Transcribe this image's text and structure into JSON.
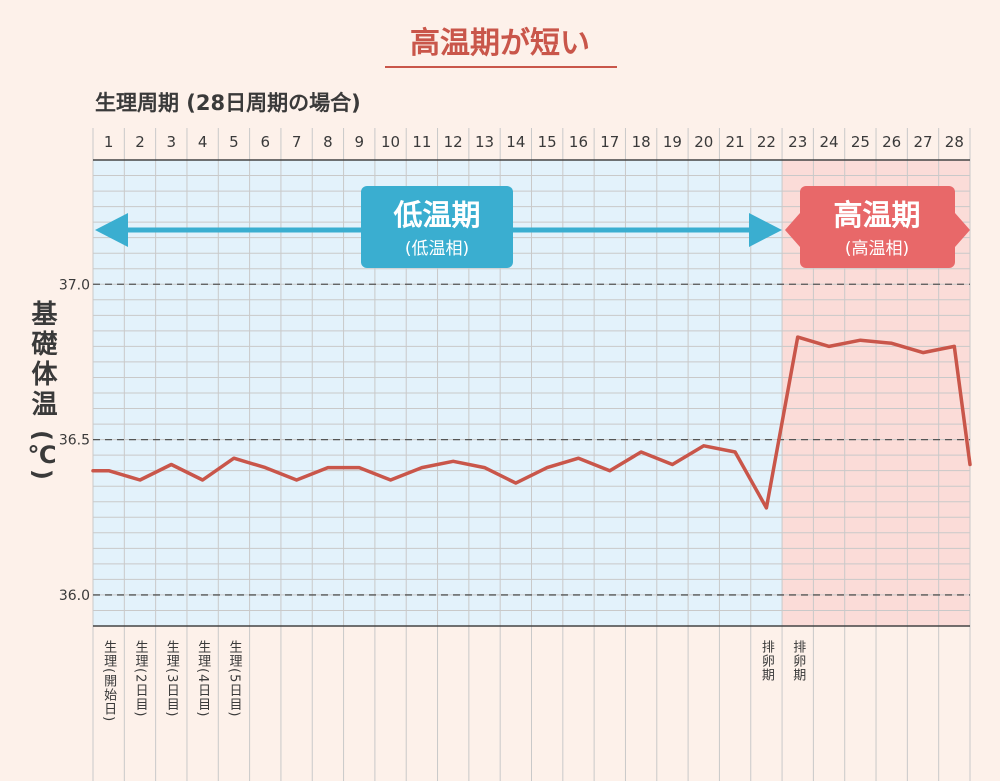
{
  "title": "高温期が短い",
  "subtitle": "生理周期 (28日周期の場合)",
  "ylabel": "基礎体温",
  "yunit": "(℃)",
  "colors": {
    "background": "#fdf1ea",
    "low_phase_fill": "#e3f2fb",
    "high_phase_fill": "#fbdcd8",
    "line": "#c9564a",
    "low_label_bg": "#3aaed0",
    "high_label_bg": "#e86869",
    "title": "#c9564a",
    "grid": "#c9c9c9",
    "dashed": "#555555"
  },
  "phases": {
    "low": {
      "label": "低温期",
      "sub": "(低温相)"
    },
    "high": {
      "label": "高温期",
      "sub": "(高温相)"
    }
  },
  "chart_data": {
    "type": "line",
    "x": [
      1,
      2,
      3,
      4,
      5,
      6,
      7,
      8,
      9,
      10,
      11,
      12,
      13,
      14,
      15,
      16,
      17,
      18,
      19,
      20,
      21,
      22,
      23,
      24,
      25,
      26,
      27,
      28
    ],
    "series": [
      {
        "values": [
          36.4,
          36.37,
          36.42,
          36.37,
          36.44,
          36.41,
          36.37,
          36.41,
          36.41,
          36.37,
          36.41,
          36.43,
          36.41,
          36.36,
          36.41,
          36.44,
          36.4,
          36.46,
          36.42,
          36.48,
          36.46,
          36.28,
          36.83,
          36.8,
          36.82,
          36.81,
          36.78,
          36.8
        ]
      }
    ],
    "start_value": 36.4,
    "end_value": 36.42,
    "ylim": [
      35.9,
      37.4
    ],
    "yticks": [
      36.0,
      36.5,
      37.0
    ],
    "ytick_labels": [
      "36.0",
      "36.5",
      "37.0"
    ],
    "low_phase_days": [
      1,
      22
    ],
    "high_phase_days": [
      23,
      28
    ],
    "day_notes": [
      {
        "day": 1,
        "text": "生理(開始日)"
      },
      {
        "day": 2,
        "text": "生理(2日目)"
      },
      {
        "day": 3,
        "text": "生理(3日目)"
      },
      {
        "day": 4,
        "text": "生理(4日目)"
      },
      {
        "day": 5,
        "text": "生理(5日目)"
      },
      {
        "day": 22,
        "text": "排卵期"
      },
      {
        "day": 23,
        "text": "排卵期"
      }
    ]
  }
}
